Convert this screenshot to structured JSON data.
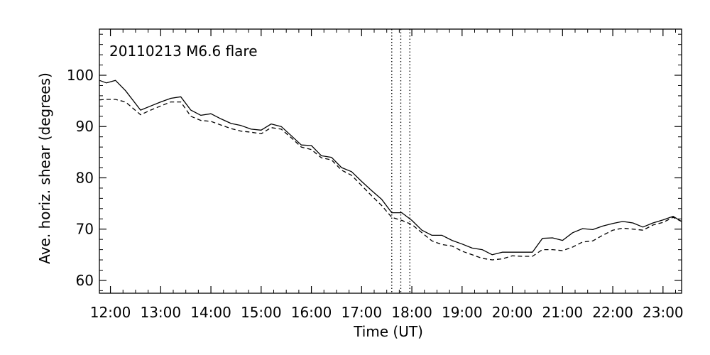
{
  "chart_data": {
    "type": "line",
    "title": "",
    "annotation": "20110213 M6.6 flare",
    "xlabel": "Time (UT)",
    "ylabel": "Ave. horiz. shear (degrees)",
    "xlim": [
      11.78,
      23.37
    ],
    "ylim": [
      57.5,
      109
    ],
    "grid": false,
    "legend": "none",
    "x_ticks": [
      12,
      13,
      14,
      15,
      16,
      17,
      18,
      19,
      20,
      21,
      22,
      23
    ],
    "x_tick_labels": [
      "12:00",
      "13:00",
      "14:00",
      "15:00",
      "16:00",
      "17:00",
      "18:00",
      "19:00",
      "20:00",
      "21:00",
      "22:00",
      "23:00"
    ],
    "y_ticks": [
      60,
      70,
      80,
      90,
      100
    ],
    "y_tick_labels": [
      "60",
      "70",
      "80",
      "90",
      "100"
    ],
    "vlines": [
      17.6,
      17.78,
      17.96
    ],
    "series": [
      {
        "style": "solid",
        "x": [
          11.78,
          11.92,
          12.1,
          12.3,
          12.6,
          12.8,
          13.0,
          13.2,
          13.4,
          13.6,
          13.8,
          14.0,
          14.2,
          14.4,
          14.6,
          14.8,
          15.0,
          15.2,
          15.4,
          15.6,
          15.8,
          16.0,
          16.2,
          16.4,
          16.6,
          16.8,
          17.0,
          17.2,
          17.4,
          17.6,
          17.8,
          18.0,
          18.2,
          18.4,
          18.6,
          18.8,
          19.0,
          19.2,
          19.4,
          19.6,
          19.8,
          20.0,
          20.2,
          20.4,
          20.6,
          20.8,
          21.0,
          21.2,
          21.4,
          21.6,
          21.8,
          22.0,
          22.2,
          22.4,
          22.6,
          22.8,
          23.0,
          23.2,
          23.37
        ],
        "y": [
          99,
          98.5,
          99,
          97,
          93.2,
          94,
          94.8,
          95.5,
          95.8,
          93.2,
          92.2,
          92.5,
          91.5,
          90.6,
          90.2,
          89.5,
          89.3,
          90.5,
          90,
          88.2,
          86.4,
          86.3,
          84.3,
          84,
          82,
          81.2,
          79.3,
          77.5,
          75.8,
          73.2,
          73.2,
          71.7,
          69.8,
          68.8,
          68.8,
          67.8,
          67.1,
          66.3,
          66,
          65,
          65.5,
          65.5,
          65.5,
          65.5,
          68.2,
          68.3,
          67.8,
          69.3,
          70.1,
          69.9,
          70.6,
          71.1,
          71.5,
          71.2,
          70.4,
          71.2,
          71.8,
          72.5,
          71.5
        ]
      },
      {
        "style": "dashed",
        "x": [
          11.78,
          11.92,
          12.1,
          12.3,
          12.6,
          12.8,
          13.0,
          13.2,
          13.4,
          13.6,
          13.8,
          14.0,
          14.2,
          14.4,
          14.6,
          14.8,
          15.0,
          15.2,
          15.4,
          15.6,
          15.8,
          16.0,
          16.2,
          16.4,
          16.6,
          16.8,
          17.0,
          17.2,
          17.4,
          17.6,
          17.8,
          18.0,
          18.2,
          18.4,
          18.6,
          18.8,
          19.0,
          19.2,
          19.4,
          19.6,
          19.8,
          20.0,
          20.2,
          20.4,
          20.6,
          20.8,
          21.0,
          21.2,
          21.4,
          21.6,
          21.8,
          22.0,
          22.2,
          22.4,
          22.6,
          22.8,
          23.0,
          23.2,
          23.37
        ],
        "y": [
          95.2,
          95.3,
          95.3,
          94.8,
          92.3,
          93.2,
          94,
          94.8,
          94.8,
          92,
          91.2,
          91,
          90.3,
          89.6,
          89.1,
          88.9,
          88.6,
          89.8,
          89.5,
          87.8,
          86,
          85.5,
          83.9,
          83.5,
          81.5,
          80.5,
          78.5,
          76.5,
          74.6,
          72.3,
          71.7,
          70.9,
          69.3,
          67.7,
          67,
          66.7,
          65.7,
          65,
          64.3,
          64,
          64.2,
          64.8,
          64.7,
          64.7,
          66,
          66,
          65.8,
          66.5,
          67.5,
          67.7,
          68.8,
          69.8,
          70.2,
          70,
          69.8,
          70.8,
          71.3,
          72.3,
          71.5
        ]
      }
    ]
  }
}
